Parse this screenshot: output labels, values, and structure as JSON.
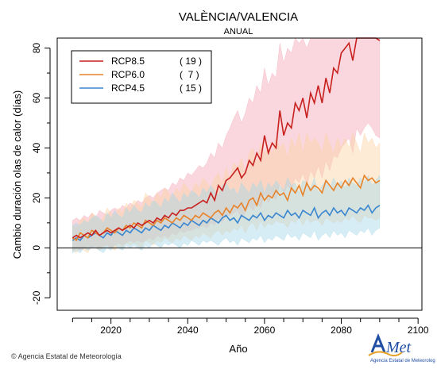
{
  "chart_data": {
    "type": "line",
    "title": "VALÈNCIA/VALENCIA",
    "subtitle": "ANUAL",
    "xlabel": "Año",
    "ylabel": "Cambio duración olas de calor (días)",
    "xlim": [
      2006,
      2101
    ],
    "ylim": [
      -25,
      84
    ],
    "x_ticks": [
      2020,
      2040,
      2060,
      2080,
      2100
    ],
    "y_ticks": [
      -20,
      0,
      20,
      40,
      60,
      80
    ],
    "legend_position": "top-left",
    "series": [
      {
        "name": "RCP8.5",
        "count": "19",
        "color": "#c8201e",
        "band_color": "#f4a6b5",
        "x_start": 2010,
        "values": [
          4,
          5,
          4,
          5,
          6,
          5,
          7,
          5,
          6,
          7,
          6,
          7,
          8,
          7,
          8,
          9,
          8,
          10,
          9,
          10,
          11,
          10,
          12,
          11,
          13,
          12,
          14,
          13,
          15,
          15,
          16,
          16,
          17,
          18,
          19,
          18,
          22,
          19,
          25,
          23,
          27,
          28,
          30,
          32,
          28,
          30,
          35,
          33,
          38,
          35,
          45,
          38,
          42,
          40,
          55,
          45,
          50,
          48,
          58,
          55,
          60,
          52,
          62,
          58,
          65,
          58,
          68,
          62,
          72,
          70,
          78,
          80,
          82,
          75,
          88,
          84,
          89,
          90,
          88,
          85,
          83
        ],
        "upper": [
          11,
          12,
          11,
          13,
          12,
          14,
          12,
          15,
          14,
          13,
          15,
          16,
          15,
          17,
          16,
          18,
          17,
          19,
          18,
          20,
          21,
          20,
          22,
          23,
          24,
          23,
          26,
          25,
          28,
          27,
          30,
          29,
          31,
          33,
          32,
          34,
          38,
          36,
          42,
          40,
          45,
          48,
          52,
          55,
          50,
          54,
          60,
          58,
          65,
          62,
          72,
          65,
          70,
          68,
          82,
          74,
          80,
          78,
          85,
          82,
          88,
          80,
          90,
          85,
          90,
          84,
          92,
          88,
          92,
          90,
          92,
          92,
          92,
          90,
          92,
          92,
          92,
          92,
          92,
          92,
          92
        ],
        "lower": [
          -1,
          0,
          -1,
          0,
          1,
          0,
          1,
          0,
          1,
          1,
          0,
          1,
          2,
          1,
          2,
          3,
          2,
          3,
          2,
          3,
          4,
          3,
          5,
          4,
          5,
          4,
          6,
          5,
          7,
          6,
          7,
          7,
          8,
          8,
          9,
          8,
          10,
          9,
          12,
          10,
          13,
          13,
          14,
          15,
          12,
          14,
          17,
          15,
          18,
          16,
          22,
          18,
          21,
          19,
          26,
          22,
          25,
          23,
          28,
          26,
          30,
          25,
          31,
          28,
          33,
          28,
          35,
          31,
          37,
          36,
          40,
          42,
          44,
          38,
          48,
          45,
          48,
          50,
          48,
          45,
          44
        ]
      },
      {
        "name": "RCP6.0",
        "count": "7",
        "color": "#e8832a",
        "band_color": "#fbd2a5",
        "x_start": 2010,
        "values": [
          4,
          3,
          6,
          5,
          4,
          7,
          6,
          5,
          6,
          8,
          7,
          6,
          8,
          7,
          9,
          8,
          10,
          9,
          8,
          11,
          10,
          9,
          11,
          10,
          12,
          11,
          10,
          12,
          11,
          13,
          12,
          11,
          13,
          12,
          14,
          13,
          12,
          14,
          15,
          13,
          16,
          14,
          17,
          16,
          18,
          15,
          19,
          20,
          17,
          22,
          19,
          21,
          20,
          23,
          21,
          22,
          19,
          24,
          22,
          25,
          21,
          26,
          23,
          25,
          24,
          22,
          27,
          25,
          23,
          26,
          24,
          27,
          25,
          28,
          26,
          24,
          29,
          27,
          28,
          26,
          27
        ],
        "upper": [
          9,
          8,
          11,
          12,
          10,
          14,
          13,
          11,
          12,
          16,
          14,
          13,
          16,
          14,
          18,
          16,
          19,
          18,
          16,
          22,
          20,
          18,
          22,
          20,
          24,
          22,
          20,
          24,
          22,
          26,
          24,
          22,
          26,
          24,
          28,
          26,
          24,
          28,
          30,
          26,
          32,
          28,
          34,
          32,
          36,
          30,
          38,
          40,
          34,
          42,
          38,
          40,
          38,
          44,
          40,
          42,
          36,
          44,
          40,
          46,
          38,
          46,
          42,
          44,
          42,
          38,
          46,
          42,
          38,
          44,
          40,
          44,
          40,
          46,
          42,
          38,
          46,
          42,
          44,
          40,
          42
        ],
        "lower": [
          -1,
          -2,
          0,
          -1,
          -2,
          1,
          0,
          -1,
          0,
          1,
          0,
          -1,
          1,
          0,
          2,
          1,
          2,
          1,
          0,
          3,
          2,
          1,
          3,
          2,
          4,
          3,
          2,
          4,
          3,
          5,
          4,
          3,
          5,
          4,
          6,
          5,
          4,
          6,
          7,
          5,
          7,
          6,
          8,
          7,
          9,
          6,
          9,
          10,
          7,
          11,
          8,
          10,
          9,
          11,
          10,
          10,
          8,
          11,
          10,
          12,
          9,
          12,
          10,
          11,
          11,
          9,
          12,
          11,
          10,
          11,
          10,
          12,
          11,
          13,
          11,
          10,
          13,
          12,
          12,
          11,
          12
        ]
      },
      {
        "name": "RCP4.5",
        "count": "15",
        "color": "#3a86cf",
        "band_color": "#a6d8e8",
        "x_start": 2010,
        "values": [
          3,
          4,
          3,
          5,
          4,
          5,
          6,
          5,
          4,
          6,
          5,
          7,
          6,
          5,
          7,
          6,
          8,
          7,
          6,
          8,
          7,
          9,
          8,
          7,
          9,
          8,
          10,
          9,
          8,
          10,
          9,
          11,
          10,
          9,
          11,
          10,
          12,
          11,
          10,
          12,
          13,
          11,
          12,
          10,
          13,
          12,
          11,
          13,
          12,
          14,
          11,
          13,
          12,
          14,
          13,
          12,
          15,
          13,
          14,
          12,
          15,
          14,
          13,
          16,
          12,
          14,
          15,
          13,
          16,
          14,
          15,
          13,
          16,
          15,
          14,
          16,
          15,
          17,
          14,
          16,
          17
        ],
        "upper": [
          9,
          10,
          9,
          11,
          10,
          12,
          13,
          12,
          10,
          14,
          12,
          15,
          13,
          12,
          16,
          14,
          17,
          15,
          14,
          18,
          16,
          19,
          18,
          16,
          20,
          18,
          22,
          20,
          18,
          22,
          20,
          23,
          22,
          20,
          24,
          22,
          25,
          23,
          21,
          25,
          26,
          23,
          24,
          21,
          26,
          24,
          22,
          26,
          24,
          27,
          22,
          26,
          24,
          27,
          25,
          23,
          28,
          25,
          26,
          22,
          27,
          26,
          24,
          28,
          22,
          25,
          27,
          24,
          28,
          25,
          27,
          24,
          28,
          26,
          25,
          28,
          26,
          29,
          25,
          27,
          29
        ],
        "lower": [
          -2,
          -1,
          -2,
          0,
          -1,
          0,
          0,
          -1,
          -2,
          0,
          -1,
          1,
          0,
          -1,
          1,
          0,
          1,
          0,
          -1,
          1,
          0,
          2,
          1,
          0,
          2,
          1,
          2,
          1,
          0,
          2,
          1,
          3,
          2,
          1,
          3,
          2,
          3,
          2,
          1,
          3,
          4,
          2,
          3,
          1,
          4,
          3,
          2,
          4,
          3,
          5,
          2,
          4,
          3,
          5,
          4,
          3,
          6,
          4,
          5,
          3,
          6,
          5,
          4,
          7,
          3,
          5,
          6,
          4,
          7,
          5,
          6,
          4,
          7,
          6,
          5,
          7,
          6,
          8,
          5,
          7,
          8
        ]
      }
    ]
  },
  "footer": {
    "credit": "Agencia Estatal de Meteorología"
  },
  "logo": {
    "name": "AEMet",
    "caption": "Agencia Estatal de Meteorología"
  }
}
